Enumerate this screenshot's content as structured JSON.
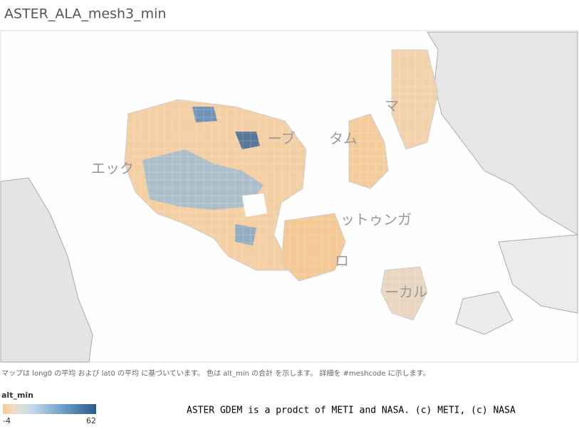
{
  "header": {
    "title": "ASTER_ALA_mesh3_min"
  },
  "map": {
    "place_labels": [
      "エック",
      "ーブ",
      "タム",
      "マ",
      "ットゥンガ",
      "ロ",
      "ーカル"
    ]
  },
  "caption": "マップは long0 の平均 および lat0 の平均 に基づいています。 色は alt_min の合計 を示します。 詳細を #meshcode に示します。",
  "legend": {
    "title": "alt_min",
    "min": -4,
    "max": 62
  },
  "credit": "ASTER GDEM is a prodct of METI and NASA. (c) METI, (c) NASA"
}
